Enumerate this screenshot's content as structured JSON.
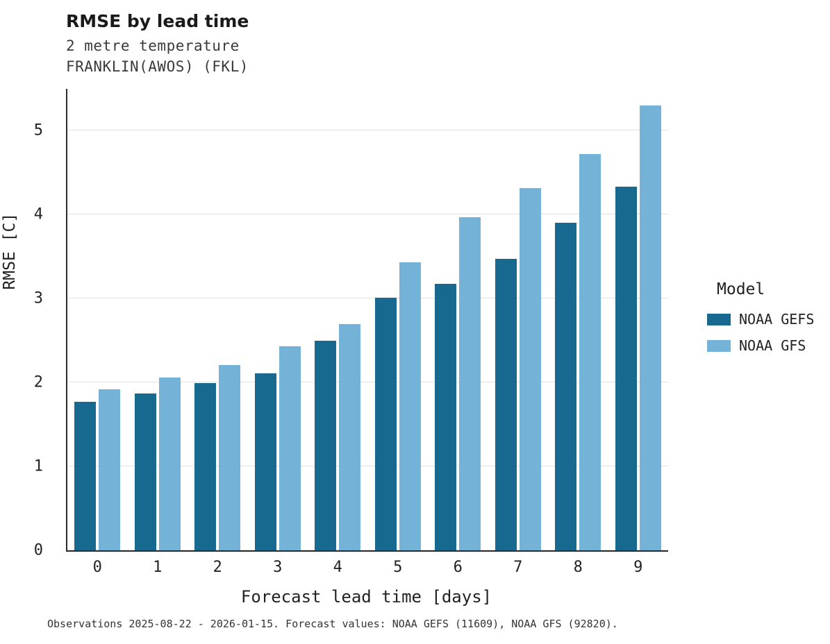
{
  "chart_data": {
    "type": "bar",
    "title": "RMSE by lead time",
    "subtitle_line1": "2 metre temperature",
    "subtitle_line2": "FRANKLIN(AWOS) (FKL)",
    "xlabel": "Forecast lead time [days]",
    "ylabel": "RMSE [C]",
    "categories": [
      "0",
      "1",
      "2",
      "3",
      "4",
      "5",
      "6",
      "7",
      "8",
      "9"
    ],
    "series": [
      {
        "name": "NOAA GEFS",
        "color": "#17698f",
        "values": [
          1.77,
          1.87,
          1.99,
          2.11,
          2.5,
          3.01,
          3.18,
          3.47,
          3.9,
          4.33
        ]
      },
      {
        "name": "NOAA GFS",
        "color": "#74b2d8",
        "values": [
          1.92,
          2.06,
          2.21,
          2.43,
          2.7,
          3.43,
          3.97,
          4.32,
          4.72,
          5.3
        ]
      }
    ],
    "ylim": [
      0,
      5.5
    ],
    "yticks": [
      0,
      1,
      2,
      3,
      4,
      5
    ],
    "grid": "horizontal",
    "legend_title": "Model",
    "legend_position": "right",
    "caption": "Observations 2025-08-22 - 2026-01-15. Forecast values: NOAA GEFS (11609), NOAA GFS (92820)."
  }
}
